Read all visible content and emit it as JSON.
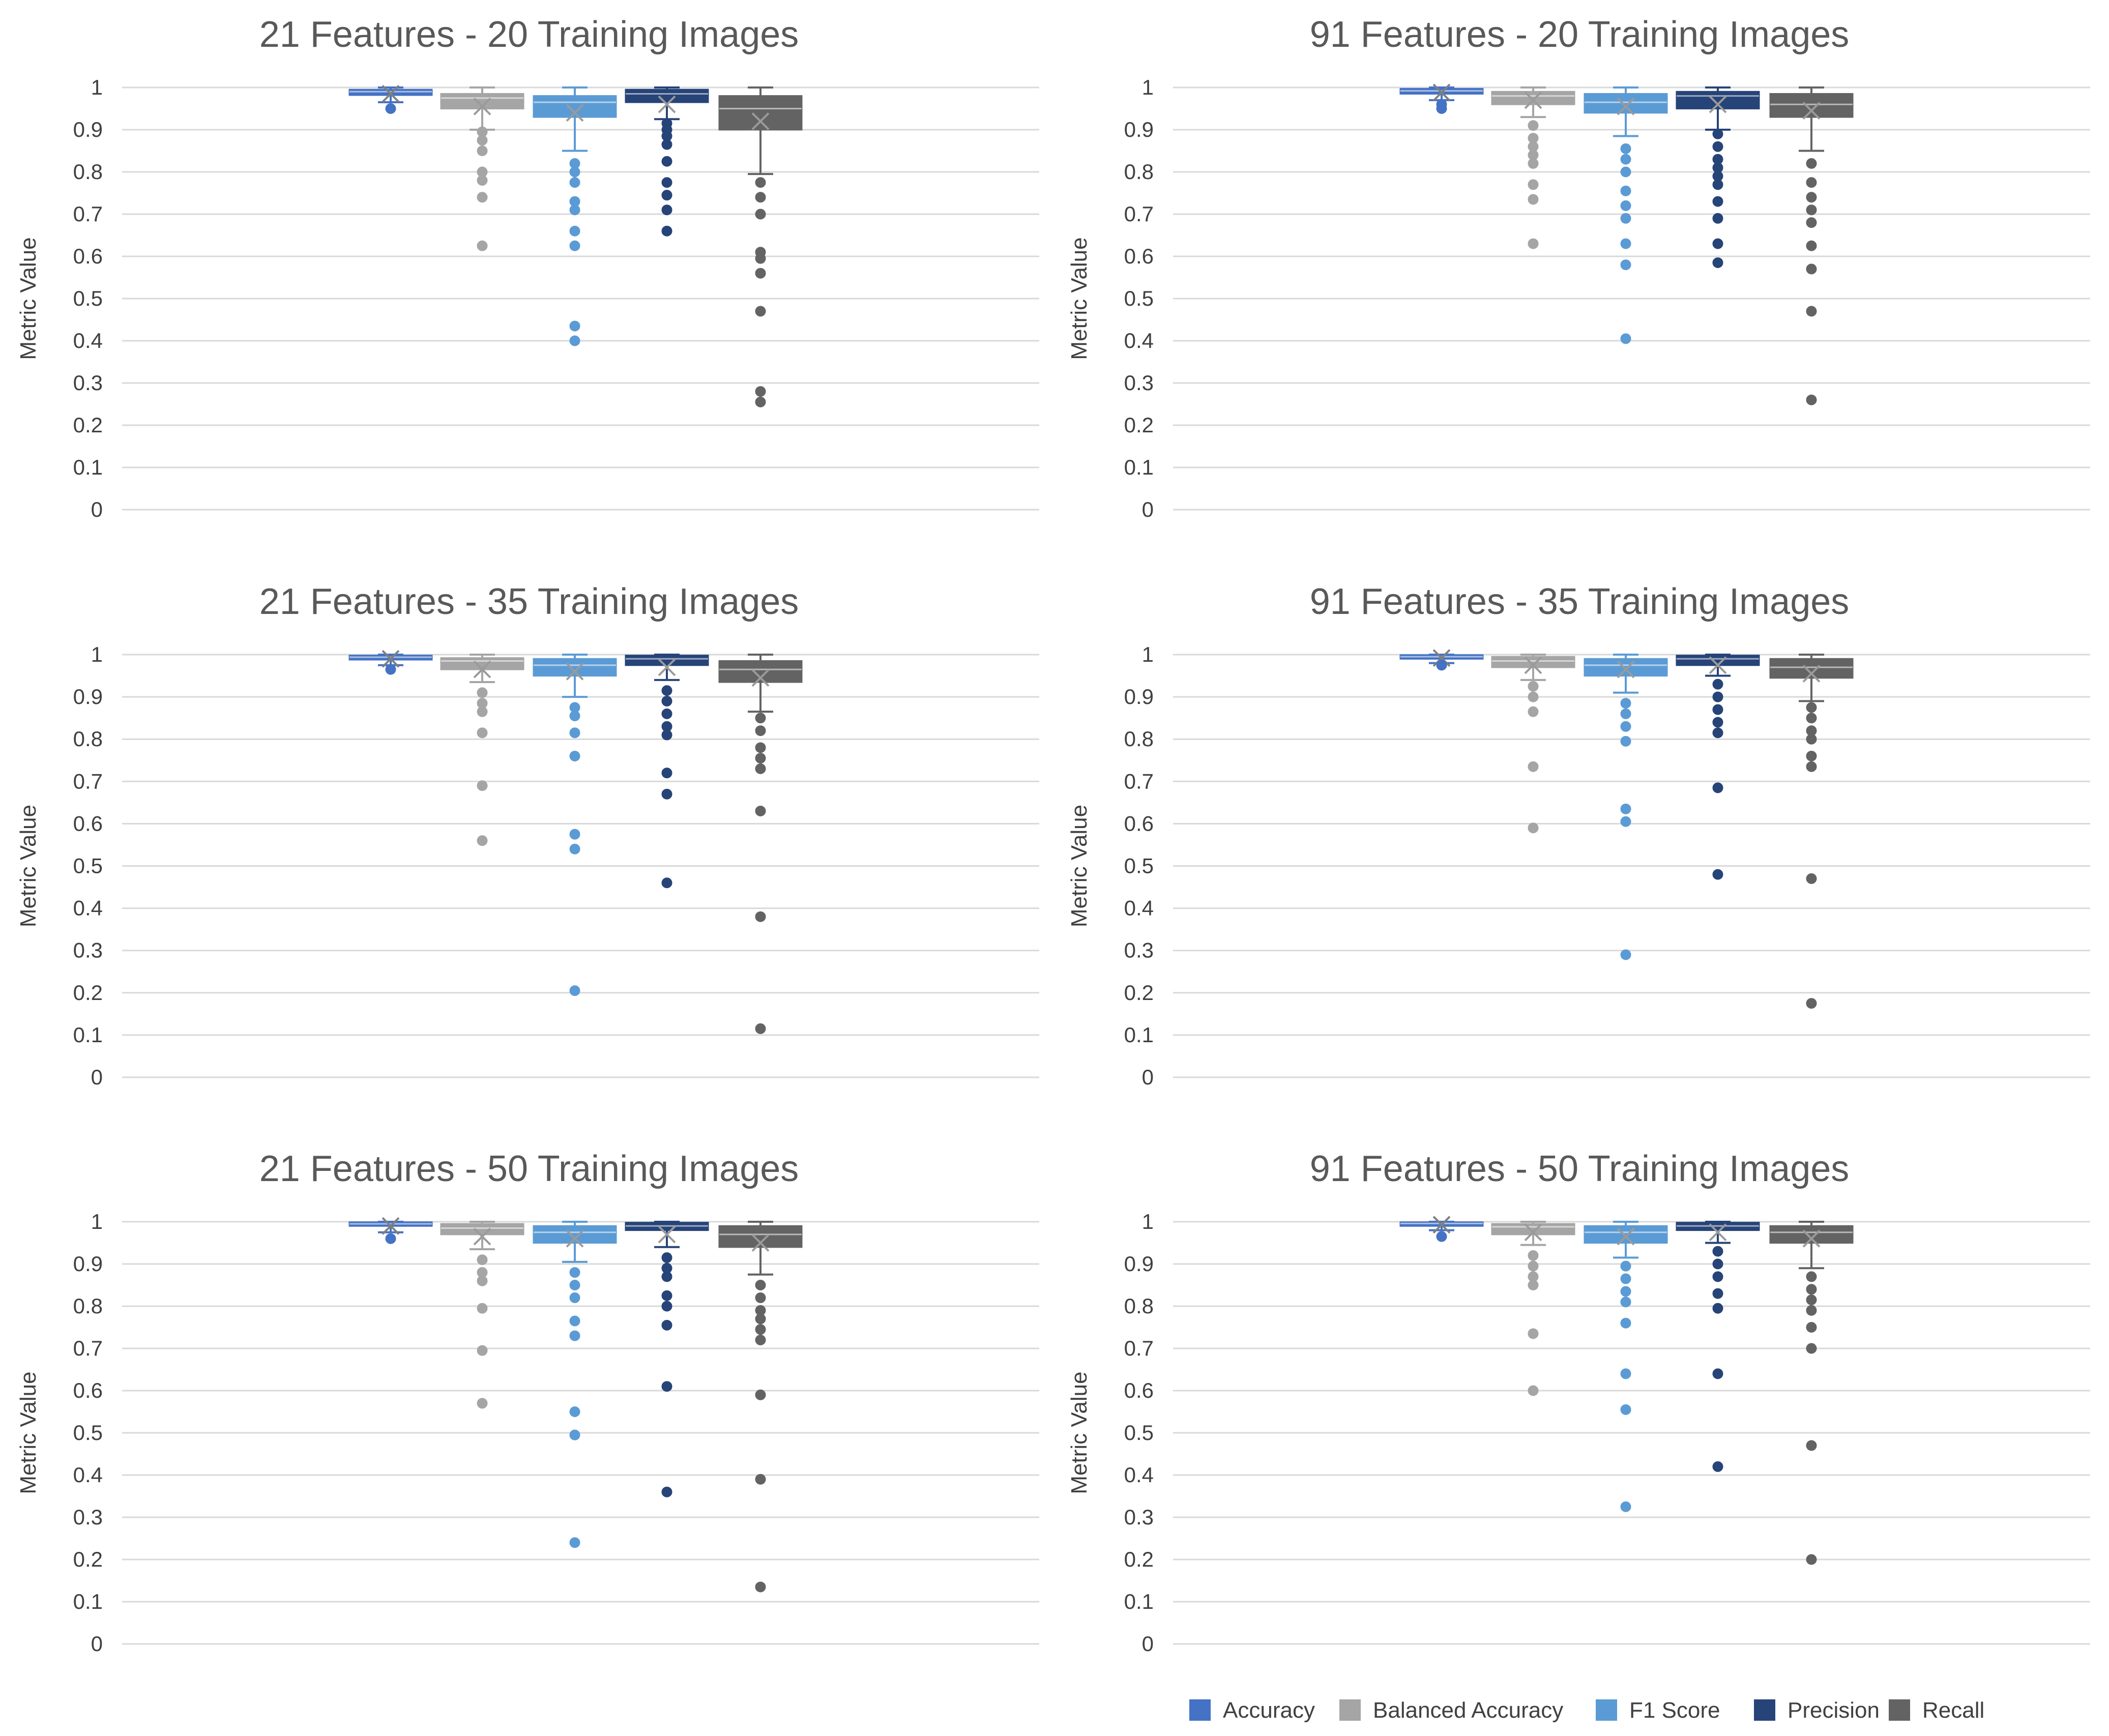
{
  "chart_data": [
    {
      "type": "box",
      "title": "21 Features - 20 Training Images",
      "ylabel": "Metric Value",
      "ylim": [
        0,
        1
      ],
      "yticks": [
        "0",
        "0.1",
        "0.2",
        "0.3",
        "0.4",
        "0.5",
        "0.6",
        "0.7",
        "0.8",
        "0.9",
        "1"
      ],
      "grid": true,
      "series": [
        {
          "name": "Accuracy",
          "min": 0.965,
          "q1": 0.982,
          "median": 0.99,
          "q3": 0.995,
          "max": 1.0,
          "mean": 0.985,
          "outliers": [
            0.95
          ]
        },
        {
          "name": "Balanced Accuracy",
          "min": 0.9,
          "q1": 0.95,
          "median": 0.975,
          "q3": 0.985,
          "max": 1.0,
          "mean": 0.955,
          "outliers": [
            0.895,
            0.875,
            0.85,
            0.8,
            0.78,
            0.74,
            0.625
          ]
        },
        {
          "name": "F1 Score",
          "min": 0.85,
          "q1": 0.93,
          "median": 0.965,
          "q3": 0.98,
          "max": 1.0,
          "mean": 0.94,
          "outliers": [
            0.82,
            0.8,
            0.775,
            0.73,
            0.71,
            0.66,
            0.625,
            0.435,
            0.4
          ]
        },
        {
          "name": "Precision",
          "min": 0.925,
          "q1": 0.965,
          "median": 0.985,
          "q3": 0.995,
          "max": 1.0,
          "mean": 0.96,
          "outliers": [
            0.915,
            0.9,
            0.885,
            0.865,
            0.825,
            0.775,
            0.745,
            0.71,
            0.66
          ]
        },
        {
          "name": "Recall",
          "min": 0.795,
          "q1": 0.9,
          "median": 0.95,
          "q3": 0.98,
          "max": 1.0,
          "mean": 0.92,
          "outliers": [
            0.775,
            0.74,
            0.7,
            0.61,
            0.595,
            0.56,
            0.47,
            0.28,
            0.255
          ]
        }
      ]
    },
    {
      "type": "box",
      "title": "91 Features - 20 Training Images",
      "ylabel": "Metric Value",
      "ylim": [
        0,
        1
      ],
      "yticks": [
        "0",
        "0.1",
        "0.2",
        "0.3",
        "0.4",
        "0.5",
        "0.6",
        "0.7",
        "0.8",
        "0.9",
        "1"
      ],
      "grid": true,
      "series": [
        {
          "name": "Accuracy",
          "min": 0.97,
          "q1": 0.985,
          "median": 0.992,
          "q3": 0.997,
          "max": 1.0,
          "mean": 0.988,
          "outliers": [
            0.96,
            0.95
          ]
        },
        {
          "name": "Balanced Accuracy",
          "min": 0.93,
          "q1": 0.96,
          "median": 0.98,
          "q3": 0.99,
          "max": 1.0,
          "mean": 0.97,
          "outliers": [
            0.91,
            0.88,
            0.86,
            0.84,
            0.82,
            0.77,
            0.735,
            0.63
          ]
        },
        {
          "name": "F1 Score",
          "min": 0.885,
          "q1": 0.94,
          "median": 0.965,
          "q3": 0.985,
          "max": 1.0,
          "mean": 0.955,
          "outliers": [
            0.855,
            0.83,
            0.8,
            0.755,
            0.72,
            0.69,
            0.63,
            0.58,
            0.405
          ]
        },
        {
          "name": "Precision",
          "min": 0.9,
          "q1": 0.95,
          "median": 0.98,
          "q3": 0.99,
          "max": 1.0,
          "mean": 0.96,
          "outliers": [
            0.89,
            0.86,
            0.83,
            0.81,
            0.79,
            0.77,
            0.73,
            0.69,
            0.63,
            0.585
          ]
        },
        {
          "name": "Recall",
          "min": 0.85,
          "q1": 0.93,
          "median": 0.96,
          "q3": 0.985,
          "max": 1.0,
          "mean": 0.945,
          "outliers": [
            0.82,
            0.775,
            0.74,
            0.71,
            0.68,
            0.625,
            0.57,
            0.47,
            0.26
          ]
        }
      ]
    },
    {
      "type": "box",
      "title": "21 Features - 35 Training Images",
      "ylabel": "Metric Value",
      "ylim": [
        0,
        1
      ],
      "yticks": [
        "0",
        "0.1",
        "0.2",
        "0.3",
        "0.4",
        "0.5",
        "0.6",
        "0.7",
        "0.8",
        "0.9",
        "1"
      ],
      "grid": true,
      "series": [
        {
          "name": "Accuracy",
          "min": 0.975,
          "q1": 0.988,
          "median": 0.994,
          "q3": 0.998,
          "max": 1.0,
          "mean": 0.99,
          "outliers": [
            0.965
          ]
        },
        {
          "name": "Balanced Accuracy",
          "min": 0.935,
          "q1": 0.965,
          "median": 0.985,
          "q3": 0.992,
          "max": 1.0,
          "mean": 0.965,
          "outliers": [
            0.91,
            0.885,
            0.865,
            0.815,
            0.69,
            0.56
          ]
        },
        {
          "name": "F1 Score",
          "min": 0.9,
          "q1": 0.95,
          "median": 0.975,
          "q3": 0.99,
          "max": 1.0,
          "mean": 0.96,
          "outliers": [
            0.875,
            0.855,
            0.815,
            0.76,
            0.575,
            0.54,
            0.205
          ]
        },
        {
          "name": "Precision",
          "min": 0.94,
          "q1": 0.975,
          "median": 0.99,
          "q3": 0.998,
          "max": 1.0,
          "mean": 0.97,
          "outliers": [
            0.915,
            0.89,
            0.86,
            0.83,
            0.81,
            0.72,
            0.67,
            0.46
          ]
        },
        {
          "name": "Recall",
          "min": 0.865,
          "q1": 0.935,
          "median": 0.965,
          "q3": 0.985,
          "max": 1.0,
          "mean": 0.945,
          "outliers": [
            0.85,
            0.82,
            0.78,
            0.755,
            0.73,
            0.63,
            0.38,
            0.115
          ]
        }
      ]
    },
    {
      "type": "box",
      "title": "91 Features - 35 Training Images",
      "ylabel": "Metric Value",
      "ylim": [
        0,
        1
      ],
      "yticks": [
        "0",
        "0.1",
        "0.2",
        "0.3",
        "0.4",
        "0.5",
        "0.6",
        "0.7",
        "0.8",
        "0.9",
        "1"
      ],
      "grid": true,
      "series": [
        {
          "name": "Accuracy",
          "min": 0.98,
          "q1": 0.99,
          "median": 0.995,
          "q3": 0.999,
          "max": 1.0,
          "mean": 0.992,
          "outliers": [
            0.975
          ]
        },
        {
          "name": "Balanced Accuracy",
          "min": 0.94,
          "q1": 0.97,
          "median": 0.985,
          "q3": 0.995,
          "max": 1.0,
          "mean": 0.975,
          "outliers": [
            0.925,
            0.9,
            0.865,
            0.735,
            0.59
          ]
        },
        {
          "name": "F1 Score",
          "min": 0.91,
          "q1": 0.95,
          "median": 0.975,
          "q3": 0.99,
          "max": 1.0,
          "mean": 0.965,
          "outliers": [
            0.885,
            0.86,
            0.83,
            0.795,
            0.635,
            0.605,
            0.29
          ]
        },
        {
          "name": "Precision",
          "min": 0.95,
          "q1": 0.975,
          "median": 0.99,
          "q3": 0.998,
          "max": 1.0,
          "mean": 0.975,
          "outliers": [
            0.93,
            0.9,
            0.87,
            0.84,
            0.815,
            0.685,
            0.48
          ]
        },
        {
          "name": "Recall",
          "min": 0.89,
          "q1": 0.945,
          "median": 0.97,
          "q3": 0.99,
          "max": 1.0,
          "mean": 0.955,
          "outliers": [
            0.875,
            0.85,
            0.82,
            0.8,
            0.76,
            0.735,
            0.47,
            0.175
          ]
        }
      ]
    },
    {
      "type": "box",
      "title": "21 Features - 50 Training Images",
      "ylabel": "Metric Value",
      "ylim": [
        0,
        1
      ],
      "yticks": [
        "0",
        "0.1",
        "0.2",
        "0.3",
        "0.4",
        "0.5",
        "0.6",
        "0.7",
        "0.8",
        "0.9",
        "1"
      ],
      "grid": true,
      "series": [
        {
          "name": "Accuracy",
          "min": 0.975,
          "q1": 0.99,
          "median": 0.995,
          "q3": 0.999,
          "max": 1.0,
          "mean": 0.99,
          "outliers": [
            0.96
          ]
        },
        {
          "name": "Balanced Accuracy",
          "min": 0.935,
          "q1": 0.97,
          "median": 0.985,
          "q3": 0.995,
          "max": 1.0,
          "mean": 0.965,
          "outliers": [
            0.91,
            0.88,
            0.86,
            0.795,
            0.695,
            0.57
          ]
        },
        {
          "name": "F1 Score",
          "min": 0.905,
          "q1": 0.95,
          "median": 0.975,
          "q3": 0.99,
          "max": 1.0,
          "mean": 0.96,
          "outliers": [
            0.88,
            0.85,
            0.82,
            0.765,
            0.73,
            0.55,
            0.495,
            0.24
          ]
        },
        {
          "name": "Precision",
          "min": 0.94,
          "q1": 0.98,
          "median": 0.99,
          "q3": 0.998,
          "max": 1.0,
          "mean": 0.97,
          "outliers": [
            0.915,
            0.89,
            0.87,
            0.825,
            0.8,
            0.755,
            0.61,
            0.36
          ]
        },
        {
          "name": "Recall",
          "min": 0.875,
          "q1": 0.94,
          "median": 0.97,
          "q3": 0.99,
          "max": 1.0,
          "mean": 0.95,
          "outliers": [
            0.85,
            0.82,
            0.79,
            0.77,
            0.745,
            0.72,
            0.59,
            0.39,
            0.135
          ]
        }
      ]
    },
    {
      "type": "box",
      "title": "91 Features - 50 Training Images",
      "ylabel": "Metric Value",
      "ylim": [
        0,
        1
      ],
      "yticks": [
        "0",
        "0.1",
        "0.2",
        "0.3",
        "0.4",
        "0.5",
        "0.6",
        "0.7",
        "0.8",
        "0.9",
        "1"
      ],
      "grid": true,
      "series": [
        {
          "name": "Accuracy",
          "min": 0.98,
          "q1": 0.99,
          "median": 0.996,
          "q3": 0.999,
          "max": 1.0,
          "mean": 0.993,
          "outliers": [
            0.965
          ]
        },
        {
          "name": "Balanced Accuracy",
          "min": 0.945,
          "q1": 0.97,
          "median": 0.988,
          "q3": 0.995,
          "max": 1.0,
          "mean": 0.975,
          "outliers": [
            0.92,
            0.895,
            0.87,
            0.85,
            0.735,
            0.6
          ]
        },
        {
          "name": "F1 Score",
          "min": 0.915,
          "q1": 0.95,
          "median": 0.975,
          "q3": 0.99,
          "max": 1.0,
          "mean": 0.965,
          "outliers": [
            0.895,
            0.865,
            0.835,
            0.81,
            0.76,
            0.64,
            0.555,
            0.325
          ]
        },
        {
          "name": "Precision",
          "min": 0.95,
          "q1": 0.98,
          "median": 0.99,
          "q3": 0.998,
          "max": 1.0,
          "mean": 0.975,
          "outliers": [
            0.93,
            0.9,
            0.87,
            0.83,
            0.795,
            0.64,
            0.42
          ]
        },
        {
          "name": "Recall",
          "min": 0.89,
          "q1": 0.95,
          "median": 0.975,
          "q3": 0.99,
          "max": 1.0,
          "mean": 0.96,
          "outliers": [
            0.87,
            0.84,
            0.815,
            0.79,
            0.75,
            0.7,
            0.47,
            0.2
          ]
        }
      ]
    }
  ],
  "legend": {
    "position": "bottom-right",
    "items": [
      {
        "label": "Accuracy",
        "color": "#4472C4"
      },
      {
        "label": "Balanced Accuracy",
        "color": "#A5A5A5"
      },
      {
        "label": "F1 Score",
        "color": "#5B9BD5"
      },
      {
        "label": "Precision",
        "color": "#264478"
      },
      {
        "label": "Recall",
        "color": "#636363"
      }
    ]
  },
  "style": {
    "series_colors": [
      "#4472C4",
      "#A5A5A5",
      "#5B9BD5",
      "#264478",
      "#636363"
    ],
    "grid_color": "#D9D9D9",
    "text_color": "#404040",
    "title_color": "#595959"
  }
}
